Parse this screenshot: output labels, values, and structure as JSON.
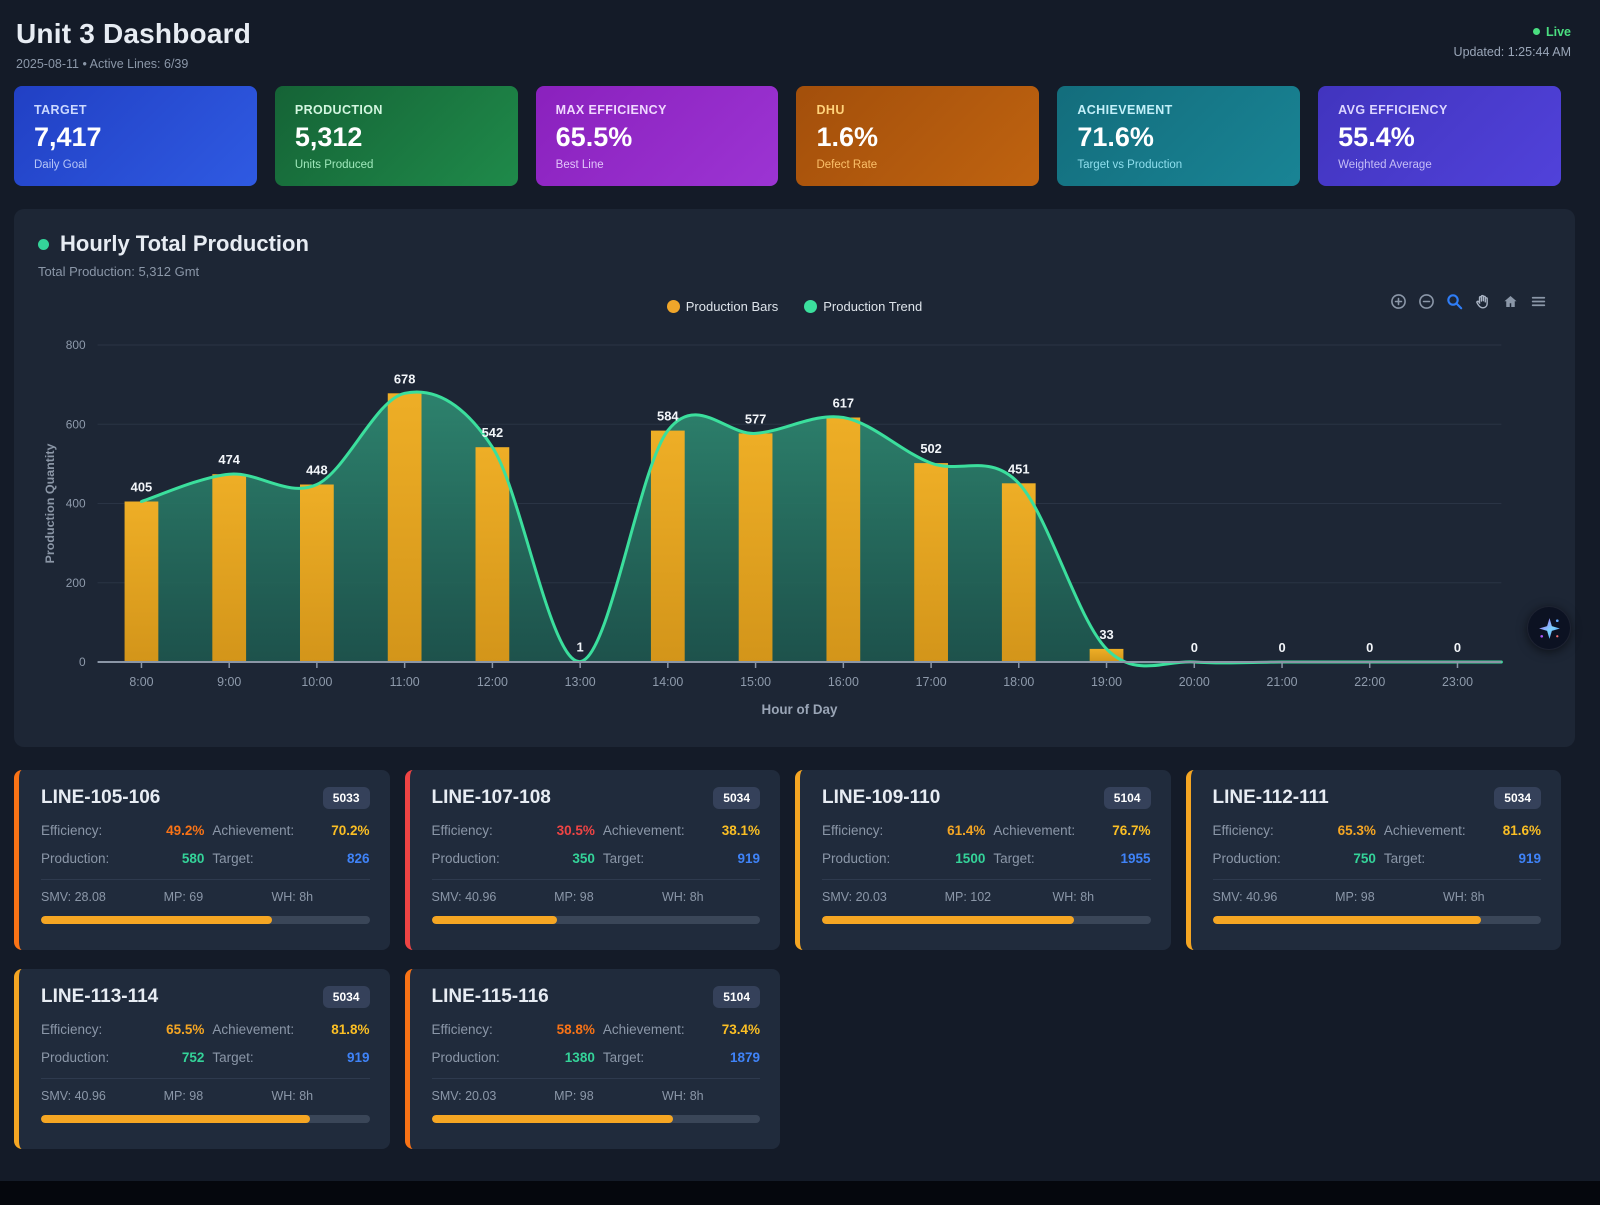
{
  "header": {
    "title": "Unit 3 Dashboard",
    "subtitle": "2025-08-11 • Active Lines: 6/39",
    "live_label": "Live",
    "updated_label": "Updated: 1:25:44 AM",
    "live_color": "#4ade80"
  },
  "kpis": [
    {
      "label": "TARGET",
      "value": "7,417",
      "sub": "Daily Goal",
      "gradient": [
        "#2140c4",
        "#2f5ae2"
      ],
      "label_color": "#ccd9ff",
      "sub_color": "#b6c6f7"
    },
    {
      "label": "PRODUCTION",
      "value": "5,312",
      "sub": "Units Produced",
      "gradient": [
        "#156336",
        "#1f8a4a"
      ],
      "label_color": "#d3f6e0",
      "sub_color": "#9fe8bb"
    },
    {
      "label": "MAX EFFICIENCY",
      "value": "65.5%",
      "sub": "Best Line",
      "gradient": [
        "#8a21bd",
        "#9c34d3"
      ],
      "label_color": "#f0d9ff",
      "sub_color": "#e2c4fa"
    },
    {
      "label": "DHU",
      "value": "1.6%",
      "sub": "Defect Rate",
      "gradient": [
        "#a34f0b",
        "#bf6310"
      ],
      "label_color": "#ffd27a",
      "sub_color": "#fbc06a"
    },
    {
      "label": "ACHIEVEMENT",
      "value": "71.6%",
      "sub": "Target vs Production",
      "gradient": [
        "#136d7c",
        "#198495"
      ],
      "label_color": "#c3f0f9",
      "sub_color": "#8fdfee"
    },
    {
      "label": "AVG EFFICIENCY",
      "value": "55.4%",
      "sub": "Weighted Average",
      "gradient": [
        "#4134be",
        "#5142da"
      ],
      "label_color": "#dcd6ff",
      "sub_color": "#c5bdf6"
    }
  ],
  "chart_data": {
    "type": "bar",
    "title": "Hourly Total Production",
    "subtitle": "Total Production: 5,312 Gmt",
    "categories": [
      "8:00",
      "9:00",
      "10:00",
      "11:00",
      "12:00",
      "13:00",
      "14:00",
      "15:00",
      "16:00",
      "17:00",
      "18:00",
      "19:00",
      "20:00",
      "21:00",
      "22:00",
      "23:00"
    ],
    "series": [
      {
        "name": "Production Bars",
        "type": "bar",
        "values": [
          405,
          474,
          448,
          678,
          542,
          1,
          584,
          577,
          617,
          502,
          451,
          33,
          0,
          0,
          0,
          0
        ]
      },
      {
        "name": "Production Trend",
        "type": "line",
        "values": [
          405,
          474,
          448,
          678,
          542,
          1,
          584,
          577,
          617,
          502,
          451,
          33,
          0,
          0,
          0,
          0
        ]
      }
    ],
    "xlabel": "Hour of Day",
    "ylabel": "Production Quantity",
    "ylim": [
      0,
      800
    ],
    "yticks": [
      0,
      200,
      400,
      600,
      800
    ],
    "grid": true,
    "legend_position": "top-center",
    "colors": {
      "bar_top": "#eeae26",
      "bar_bottom": "#d3951a",
      "bar_legend": "#f0a62a",
      "line": "#3bdf9d",
      "area_top": "#2e8770",
      "area_bottom": "#1d574e",
      "grid": "#2a3445",
      "axis": "#8b96a6",
      "tick_label": "#8e9aab",
      "value_label": "#f2f5f9"
    }
  },
  "toolbar": {
    "icon_color": "#8b97a8",
    "active_color": "#2f7df6"
  },
  "labels": {
    "efficiency": "Efficiency:",
    "achievement": "Achievement:",
    "production": "Production:",
    "target": "Target:"
  },
  "value_colors": {
    "achievement": "#fbbf24",
    "production": "#34d399",
    "target": "#3f83f8"
  },
  "progress_color": "#f5a623",
  "lines": [
    {
      "name": "LINE-105-106",
      "badge": "5033",
      "efficiency": "49.2%",
      "efficiency_color": "#f97316",
      "achievement": "70.2%",
      "production": "580",
      "target": "826",
      "smv": "SMV: 28.08",
      "mp": "MP: 69",
      "wh": "WH: 8h",
      "accent": "#f97316",
      "progress": 70.2
    },
    {
      "name": "LINE-107-108",
      "badge": "5034",
      "efficiency": "30.5%",
      "efficiency_color": "#ef4444",
      "achievement": "38.1%",
      "production": "350",
      "target": "919",
      "smv": "SMV: 40.96",
      "mp": "MP: 98",
      "wh": "WH: 8h",
      "accent": "#ef4444",
      "progress": 38.1
    },
    {
      "name": "LINE-109-110",
      "badge": "5104",
      "efficiency": "61.4%",
      "efficiency_color": "#f5a623",
      "achievement": "76.7%",
      "production": "1500",
      "target": "1955",
      "smv": "SMV: 20.03",
      "mp": "MP: 102",
      "wh": "WH: 8h",
      "accent": "#f5a623",
      "progress": 76.7
    },
    {
      "name": "LINE-112-111",
      "badge": "5034",
      "efficiency": "65.3%",
      "efficiency_color": "#f5a623",
      "achievement": "81.6%",
      "production": "750",
      "target": "919",
      "smv": "SMV: 40.96",
      "mp": "MP: 98",
      "wh": "WH: 8h",
      "accent": "#f5a623",
      "progress": 81.6
    },
    {
      "name": "LINE-113-114",
      "badge": "5034",
      "efficiency": "65.5%",
      "efficiency_color": "#f5a623",
      "achievement": "81.8%",
      "production": "752",
      "target": "919",
      "smv": "SMV: 40.96",
      "mp": "MP: 98",
      "wh": "WH: 8h",
      "accent": "#f5a623",
      "progress": 81.8
    },
    {
      "name": "LINE-115-116",
      "badge": "5104",
      "efficiency": "58.8%",
      "efficiency_color": "#f97316",
      "achievement": "73.4%",
      "production": "1380",
      "target": "1879",
      "smv": "SMV: 20.03",
      "mp": "MP: 98",
      "wh": "WH: 8h",
      "accent": "#f97316",
      "progress": 73.4
    }
  ]
}
